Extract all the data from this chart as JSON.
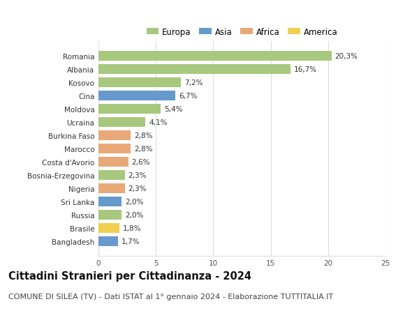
{
  "countries": [
    "Romania",
    "Albania",
    "Kosovo",
    "Cina",
    "Moldova",
    "Ucraina",
    "Burkina Faso",
    "Marocco",
    "Costa d'Avorio",
    "Bosnia-Erzegovina",
    "Nigeria",
    "Sri Lanka",
    "Russia",
    "Brasile",
    "Bangladesh"
  ],
  "values": [
    20.3,
    16.7,
    7.2,
    6.7,
    5.4,
    4.1,
    2.8,
    2.8,
    2.6,
    2.3,
    2.3,
    2.0,
    2.0,
    1.8,
    1.7
  ],
  "continents": [
    "Europa",
    "Europa",
    "Europa",
    "Asia",
    "Europa",
    "Europa",
    "Africa",
    "Africa",
    "Africa",
    "Europa",
    "Africa",
    "Asia",
    "Europa",
    "America",
    "Asia"
  ],
  "continent_colors": {
    "Europa": "#a8c87e",
    "Asia": "#6699cc",
    "Africa": "#e8a878",
    "America": "#f0d050"
  },
  "legend_order": [
    "Europa",
    "Asia",
    "Africa",
    "America"
  ],
  "xlim": [
    0,
    25
  ],
  "xticks": [
    0,
    5,
    10,
    15,
    20,
    25
  ],
  "title": "Cittadini Stranieri per Cittadinanza - 2024",
  "subtitle": "COMUNE DI SILEA (TV) - Dati ISTAT al 1° gennaio 2024 - Elaborazione TUTTITALIA.IT",
  "title_fontsize": 10.5,
  "subtitle_fontsize": 8,
  "label_fontsize": 7.5,
  "tick_fontsize": 7.5,
  "legend_fontsize": 8.5,
  "background_color": "#ffffff",
  "grid_color": "#dddddd",
  "bar_height": 0.72
}
